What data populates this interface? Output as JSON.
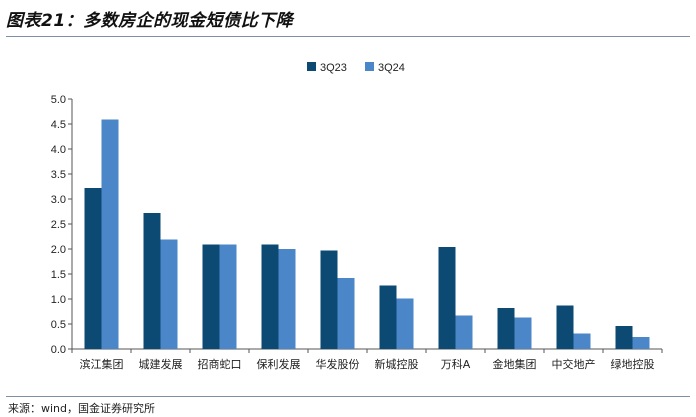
{
  "header": {
    "title": "图表21：多数房企的现金短债比下降"
  },
  "footer": {
    "source": "来源：wind，国金证券研究所"
  },
  "colors": {
    "series_1": "#0d4a73",
    "series_2": "#4a86c8",
    "axis": "#555555"
  },
  "chart_data": {
    "type": "bar",
    "title": "",
    "xlabel": "",
    "ylabel": "",
    "ylim": [
      0,
      5.0
    ],
    "yticks": [
      "0.0",
      "0.5",
      "1.0",
      "1.5",
      "2.0",
      "2.5",
      "3.0",
      "3.5",
      "4.0",
      "4.5",
      "5.0"
    ],
    "grid": false,
    "legend_position": "top",
    "categories": [
      "滨江集团",
      "城建发展",
      "招商蛇口",
      "保利发展",
      "华发股份",
      "新城控股",
      "万科A",
      "金地集团",
      "中交地产",
      "绿地控股"
    ],
    "series": [
      {
        "name": "3Q23",
        "values": [
          3.22,
          2.72,
          2.09,
          2.09,
          1.97,
          1.27,
          2.04,
          0.82,
          0.87,
          0.46
        ]
      },
      {
        "name": "3Q24",
        "values": [
          4.59,
          2.19,
          2.09,
          2.0,
          1.42,
          1.01,
          0.67,
          0.63,
          0.31,
          0.24
        ]
      }
    ]
  }
}
